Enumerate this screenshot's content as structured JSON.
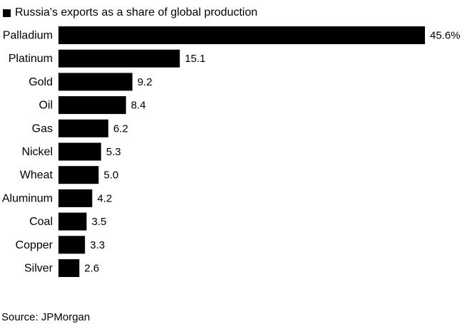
{
  "chart_data": {
    "type": "bar",
    "orientation": "horizontal",
    "title": "",
    "legend": {
      "label": "Russia's exports as a share of global production",
      "color": "#000000",
      "placement": "top-left"
    },
    "categories": [
      "Palladium",
      "Platinum",
      "Gold",
      "Oil",
      "Gas",
      "Nickel",
      "Wheat",
      "Aluminum",
      "Coal",
      "Copper",
      "Silver"
    ],
    "values": [
      45.6,
      15.1,
      9.2,
      8.4,
      6.2,
      5.3,
      5.0,
      4.2,
      3.5,
      3.3,
      2.6
    ],
    "value_labels": [
      "45.6%",
      "15.1",
      "9.2",
      "8.4",
      "6.2",
      "5.3",
      "5.0",
      "4.2",
      "3.5",
      "3.3",
      "2.6"
    ],
    "unit": "%",
    "xlabel": "",
    "ylabel": "",
    "grid": false,
    "bar_color": "#000000"
  },
  "source": "Source: JPMorgan"
}
